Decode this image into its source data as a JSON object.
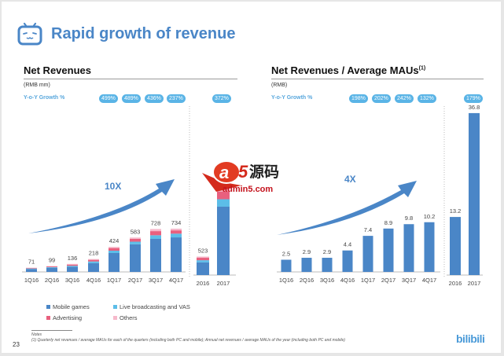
{
  "header": {
    "title": "Rapid growth of revenue",
    "logo_icon": "bilibili-tv-icon"
  },
  "left_panel": {
    "title": "Net Revenues",
    "unit": "(RMB mm)",
    "yoy_label": "Y-o-Y Growth %",
    "yoy_pills": [
      "499%",
      "489%",
      "436%",
      "237%",
      "372%"
    ],
    "annotation": "10X"
  },
  "right_panel": {
    "title": "Net Revenues / Average MAUs",
    "title_sup": "(1)",
    "unit": "(RMB)",
    "yoy_label": "Y-o-Y Growth %",
    "yoy_pills": [
      "198%",
      "202%",
      "242%",
      "132%",
      "179%"
    ],
    "annotation": "4X"
  },
  "legend": [
    {
      "label": "Mobile games",
      "color": "#4a86c7"
    },
    {
      "label": "Live broadcasting and VAS",
      "color": "#5cbde8"
    },
    {
      "label": "Advertising",
      "color": "#e8607e"
    },
    {
      "label": "Others",
      "color": "#f6b9cb"
    }
  ],
  "notes": {
    "heading": "Notes",
    "items": [
      "(1)    Quarterly net revenues / average MAUs for each of the quarters (including both PC and mobile); Annual net revenues / average MAUs of the year (including both PC and mobile)"
    ]
  },
  "page_number": "23",
  "brand": "bilibili",
  "watermark": {
    "main": "a5源码",
    "sub": "admin5.com"
  },
  "chart_data": [
    {
      "type": "bar",
      "stacked": true,
      "title": "Net Revenues",
      "ylabel": "RMB mm",
      "categories": [
        "1Q16",
        "2Q16",
        "3Q16",
        "4Q16",
        "1Q17",
        "2Q17",
        "3Q17",
        "4Q17"
      ],
      "totals": [
        71,
        99,
        136,
        218,
        424,
        583,
        728,
        734
      ],
      "series": [
        {
          "name": "Mobile games",
          "values": [
            50,
            70,
            88,
            150,
            320,
            468,
            560,
            586
          ]
        },
        {
          "name": "Live broadcasting and VAS",
          "values": [
            8,
            11,
            16,
            27,
            40,
            45,
            62,
            63
          ]
        },
        {
          "name": "Advertising",
          "values": [
            8,
            12,
            20,
            28,
            45,
            48,
            70,
            56
          ]
        },
        {
          "name": "Others",
          "values": [
            5,
            6,
            12,
            13,
            19,
            22,
            36,
            29
          ]
        }
      ],
      "annual": {
        "categories": [
          "2016",
          "2017"
        ],
        "totals": [
          523,
          2468
        ],
        "series": [
          {
            "name": "Mobile games",
            "values": [
              358,
              1934
            ]
          },
          {
            "name": "Live broadcasting and VAS",
            "values": [
              62,
              210
            ]
          },
          {
            "name": "Advertising",
            "values": [
              68,
              219
            ]
          },
          {
            "name": "Others",
            "values": [
              35,
              105
            ]
          }
        ]
      },
      "yoy_growth": [
        "499%",
        "489%",
        "436%",
        "237%",
        "372%"
      ]
    },
    {
      "type": "bar",
      "title": "Net Revenues / Average MAUs",
      "ylabel": "RMB",
      "categories": [
        "1Q16",
        "2Q16",
        "3Q16",
        "4Q16",
        "1Q17",
        "2Q17",
        "3Q17",
        "4Q17"
      ],
      "values": [
        2.5,
        2.9,
        2.9,
        4.4,
        7.4,
        8.9,
        9.8,
        10.2
      ],
      "annual": {
        "categories": [
          "2016",
          "2017"
        ],
        "values": [
          13.2,
          36.8
        ]
      },
      "yoy_growth": [
        "198%",
        "202%",
        "242%",
        "132%",
        "179%"
      ]
    }
  ]
}
